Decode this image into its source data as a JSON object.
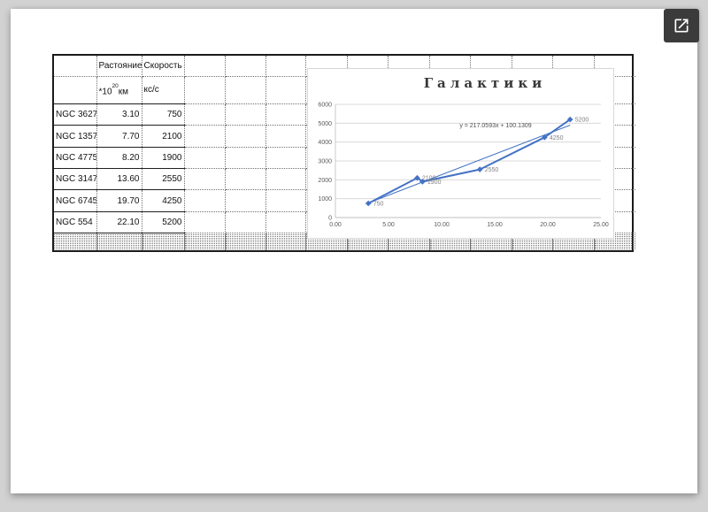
{
  "viewer": {
    "open_button_icon": "open-in-new",
    "background_color": "#d2d2d2",
    "button_color": "#3b3b3b"
  },
  "table": {
    "header_row": [
      "",
      "Растояние",
      "Скорость"
    ],
    "units_row": {
      "distance_base": "*10",
      "distance_sup": "20",
      "distance_suffix": "км",
      "speed": "кс/с"
    },
    "rows": [
      {
        "name": "NGC 3627",
        "distance": "3.10",
        "speed": "750"
      },
      {
        "name": "NGC 1357",
        "distance": "7.70",
        "speed": "2100"
      },
      {
        "name": "NGC 4775",
        "distance": "8.20",
        "speed": "1900"
      },
      {
        "name": "NGC 3147",
        "distance": "13.60",
        "speed": "2550"
      },
      {
        "name": "NGC 6745",
        "distance": "19.70",
        "speed": "4250"
      },
      {
        "name": "NGC 554",
        "distance": "22.10",
        "speed": "5200"
      }
    ]
  },
  "chart_data": {
    "type": "scatter",
    "title": "Галактики",
    "xlabel": "",
    "ylabel": "",
    "x": [
      3.1,
      7.7,
      8.2,
      13.6,
      19.7,
      22.1
    ],
    "series": [
      {
        "name": "Скорость",
        "values": [
          750,
          2100,
          1900,
          2550,
          4250,
          5200
        ],
        "color": "#4472C4",
        "marker": "diamond",
        "line": true
      }
    ],
    "point_labels": [
      "750",
      "2100",
      "1900",
      "2550",
      "4250",
      "5200"
    ],
    "trendline": {
      "equation": "y = 217.0593x + 100.1309",
      "slope": 217.0593,
      "intercept": 100.1309,
      "domain": [
        3.1,
        22.1
      ],
      "color": "#4472C4"
    },
    "x_ticks": [
      "0.00",
      "5.00",
      "10.00",
      "15.00",
      "20.00",
      "25.00"
    ],
    "y_ticks": [
      0,
      1000,
      2000,
      3000,
      4000,
      5000,
      6000
    ],
    "xlim": [
      0,
      25
    ],
    "ylim": [
      0,
      6000
    ],
    "grid": true,
    "legend": "none",
    "gridline_color": "#d9d9d9",
    "tick_label_color": "#595959",
    "data_label_color": "#808080",
    "equation_color": "#4d4d4d"
  }
}
